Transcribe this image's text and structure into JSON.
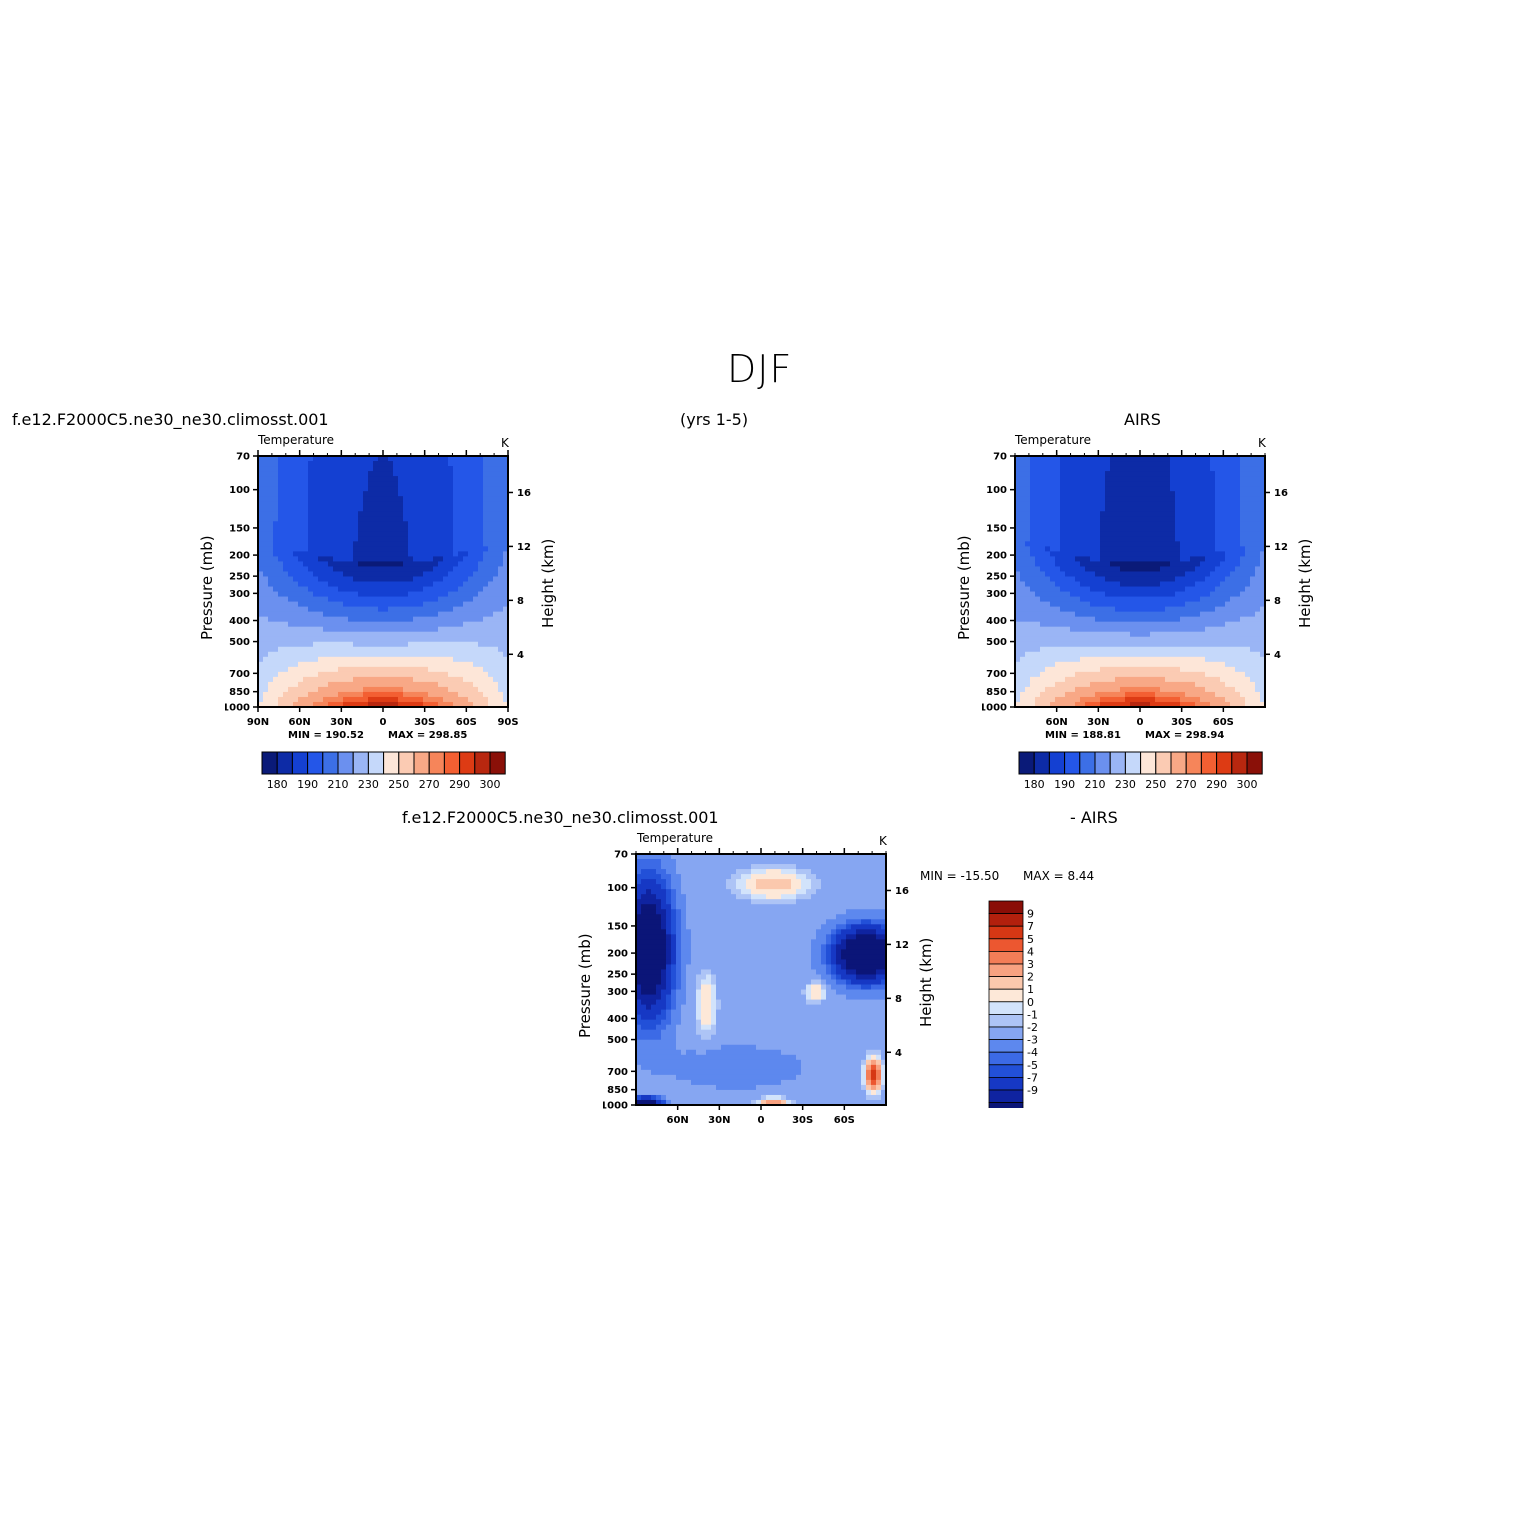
{
  "title": "DJF",
  "header": {
    "case_name": "f.e12.F2000C5.ne30_ne30.climosst.001",
    "years": "(yrs  1-5)",
    "obs_name": "AIRS",
    "diff_case": "f.e12.F2000C5.ne30_ne30.climosst.001",
    "diff_obs": "- AIRS"
  },
  "colors": {
    "abs_palette": [
      "#0a1a78",
      "#0d2ba6",
      "#1440d2",
      "#2456e8",
      "#3c6fe6",
      "#6b90ef",
      "#9ab5f5",
      "#c5d8fa",
      "#fde6d8",
      "#fbcbb3",
      "#f8a886",
      "#f6855a",
      "#f35f32",
      "#dd3b14",
      "#b8270f",
      "#8a1008"
    ],
    "diff_palette": [
      "#0b1578",
      "#0f23a0",
      "#1638c4",
      "#2250d8",
      "#3c6ae6",
      "#5d88ee",
      "#86a6f2",
      "#adc4f6",
      "#d2e3fb",
      "#fde8d8",
      "#fbc8ad",
      "#f8a281",
      "#f37d57",
      "#ec5730",
      "#d63714",
      "#b3200d",
      "#8a0e07"
    ]
  },
  "chart_data": [
    {
      "type": "heatmap",
      "panel": "model",
      "title": "Temperature",
      "units": "K",
      "ylabel": "Pressure (mb)",
      "ylabel_right": "Height (km)",
      "x_ticks": [
        "90N",
        "60N",
        "30N",
        "0",
        "30S",
        "60S",
        "90S"
      ],
      "y_ticks": [
        "70",
        "100",
        "150",
        "200",
        "250",
        "300",
        "400",
        "500",
        "700",
        "850",
        "1000"
      ],
      "y_right_ticks": [
        "16",
        "12",
        "8",
        "4"
      ],
      "min_label": "MIN = 190.52",
      "max_label": "MAX = 298.85",
      "colorbar": {
        "levels": [
          "180",
          "190",
          "210",
          "230",
          "250",
          "270",
          "290",
          "300"
        ],
        "range": [
          175,
          305
        ]
      },
      "field_summary": {
        "stratosphere_tropics": 190,
        "stratosphere_poles": 215,
        "surface_equator": 298,
        "surface_poles": 250
      }
    },
    {
      "type": "heatmap",
      "panel": "obs",
      "title": "Temperature",
      "units": "K",
      "ylabel": "Pressure (mb)",
      "ylabel_right": "Height (km)",
      "x_ticks": [
        "60N",
        "30N",
        "0",
        "30S",
        "60S"
      ],
      "y_ticks": [
        "70",
        "100",
        "150",
        "200",
        "250",
        "300",
        "400",
        "500",
        "700",
        "850",
        "1000"
      ],
      "y_right_ticks": [
        "16",
        "12",
        "8",
        "4"
      ],
      "min_label": "MIN = 188.81",
      "max_label": "MAX = 298.94",
      "colorbar": {
        "levels": [
          "180",
          "190",
          "210",
          "230",
          "250",
          "270",
          "290",
          "300"
        ],
        "range": [
          175,
          305
        ]
      },
      "field_summary": {
        "stratosphere_tropics": 188,
        "stratosphere_poles": 220,
        "surface_equator": 299,
        "surface_poles": 252
      }
    },
    {
      "type": "heatmap",
      "panel": "difference",
      "title": "Temperature",
      "units": "K",
      "ylabel": "Pressure (mb)",
      "ylabel_right": "Height (km)",
      "x_ticks": [
        "60N",
        "30N",
        "0",
        "30S",
        "60S"
      ],
      "y_ticks": [
        "70",
        "100",
        "150",
        "200",
        "250",
        "300",
        "400",
        "500",
        "700",
        "850",
        "1000"
      ],
      "y_right_ticks": [
        "16",
        "12",
        "8",
        "4"
      ],
      "min_label": "MIN = -15.50",
      "max_label": "MAX =   8.44",
      "colorbar": {
        "levels": [
          "9",
          "7",
          "5",
          "4",
          "3",
          "2",
          "1",
          "0",
          "-1",
          "-2",
          "-3",
          "-4",
          "-5",
          "-7",
          "-9"
        ]
      }
    }
  ]
}
